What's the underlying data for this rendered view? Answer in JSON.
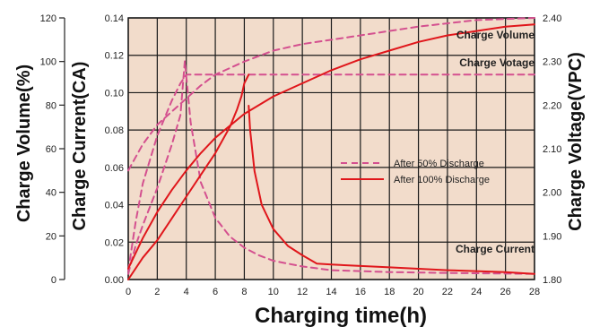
{
  "chart_data": {
    "type": "line",
    "xlabel": "Charging time(h)",
    "x_ticks": [
      "0",
      "2",
      "4",
      "6",
      "8",
      "10",
      "12",
      "14",
      "16",
      "18",
      "20",
      "22",
      "24",
      "26",
      "28"
    ],
    "xlim": [
      0,
      28
    ],
    "axes": {
      "volume": {
        "label": "Charge Volume(%)",
        "ticks": [
          "0",
          "20",
          "40",
          "60",
          "80",
          "100",
          "120"
        ],
        "range": [
          0,
          120
        ]
      },
      "current": {
        "label": "Charge Current(CA)",
        "ticks": [
          "0.00",
          "0.02",
          "0.04",
          "0.06",
          "0.08",
          "0.10",
          "0.12",
          "0.14"
        ],
        "range": [
          0,
          0.14
        ]
      },
      "voltage": {
        "label": "Charge Voltage(VPC)",
        "ticks": [
          "1.80",
          "1.90",
          "2.00",
          "2.10",
          "2.20",
          "2.30",
          "2.40"
        ],
        "range": [
          1.8,
          2.4
        ]
      }
    },
    "annotations": {
      "volume": "Charge Volume",
      "voltage": "Charge Votage",
      "current": "Charge Current"
    },
    "legend": {
      "position": "center-right",
      "entries": [
        {
          "label": "After 50% Discharge",
          "style": "dashed",
          "color": "#d4508f"
        },
        {
          "label": "After 100% Discharge",
          "style": "solid",
          "color": "#e0161b"
        }
      ]
    },
    "series": [
      {
        "group": "After 50% Discharge",
        "quantity": "Charge Volume",
        "axis": "volume",
        "x": [
          0,
          0.5,
          1,
          2,
          3,
          4,
          5,
          6,
          7,
          8,
          10,
          12,
          16,
          20,
          24,
          28
        ],
        "y": [
          50,
          56,
          62,
          71,
          77,
          83,
          89,
          94,
          97,
          100,
          105,
          108,
          112,
          116,
          119,
          120
        ]
      },
      {
        "group": "After 50% Discharge",
        "quantity": "Charge Voltage",
        "axis": "voltage",
        "x": [
          0,
          0.5,
          1,
          2,
          3,
          3.6,
          4,
          6,
          8,
          12,
          20,
          28
        ],
        "y": [
          1.82,
          1.93,
          2.02,
          2.13,
          2.21,
          2.25,
          2.27,
          2.27,
          2.27,
          2.27,
          2.27,
          2.27
        ]
      },
      {
        "group": "After 50% Discharge",
        "quantity": "Charge Current",
        "axis": "current",
        "x": [
          0,
          0.5,
          1,
          2,
          3,
          3.6,
          3.9,
          4.3,
          5,
          6,
          7,
          8,
          9,
          10,
          12,
          14,
          18,
          22,
          28
        ],
        "y": [
          0.003,
          0.018,
          0.029,
          0.049,
          0.072,
          0.088,
          0.117,
          0.084,
          0.052,
          0.033,
          0.023,
          0.017,
          0.013,
          0.01,
          0.007,
          0.005,
          0.004,
          0.0035,
          0.003
        ]
      },
      {
        "group": "After 100% Discharge",
        "quantity": "Charge Volume",
        "axis": "volume",
        "x": [
          0,
          1,
          2,
          3,
          4,
          5,
          6,
          8,
          10,
          12,
          14,
          16,
          18,
          20,
          22,
          24,
          26,
          28
        ],
        "y": [
          5,
          19,
          31,
          41,
          50,
          58,
          65,
          76,
          84,
          90,
          96,
          101,
          105,
          109,
          112,
          114,
          116,
          117
        ]
      },
      {
        "group": "After 100% Discharge",
        "quantity": "Charge Voltage",
        "axis": "voltage",
        "x": [
          0,
          1,
          2,
          3,
          4,
          5,
          6,
          7,
          7.5,
          7.8,
          8,
          8.3
        ],
        "y": [
          1.8,
          1.85,
          1.89,
          1.94,
          1.99,
          2.04,
          2.09,
          2.15,
          2.19,
          2.22,
          2.25,
          2.27
        ]
      },
      {
        "group": "After 100% Discharge",
        "quantity": "Charge Current",
        "axis": "current",
        "x": [
          8.3,
          8.4,
          8.7,
          9.2,
          10,
          11,
          12,
          13,
          14,
          18,
          22,
          26,
          28
        ],
        "y": [
          0.093,
          0.08,
          0.058,
          0.04,
          0.027,
          0.018,
          0.013,
          0.0085,
          0.008,
          0.0065,
          0.005,
          0.004,
          0.003
        ]
      }
    ]
  },
  "colors": {
    "plot_background": "#f2dccb",
    "grid": "#1a1a1a",
    "series_50": "#d4508f",
    "series_100": "#e0161b"
  }
}
